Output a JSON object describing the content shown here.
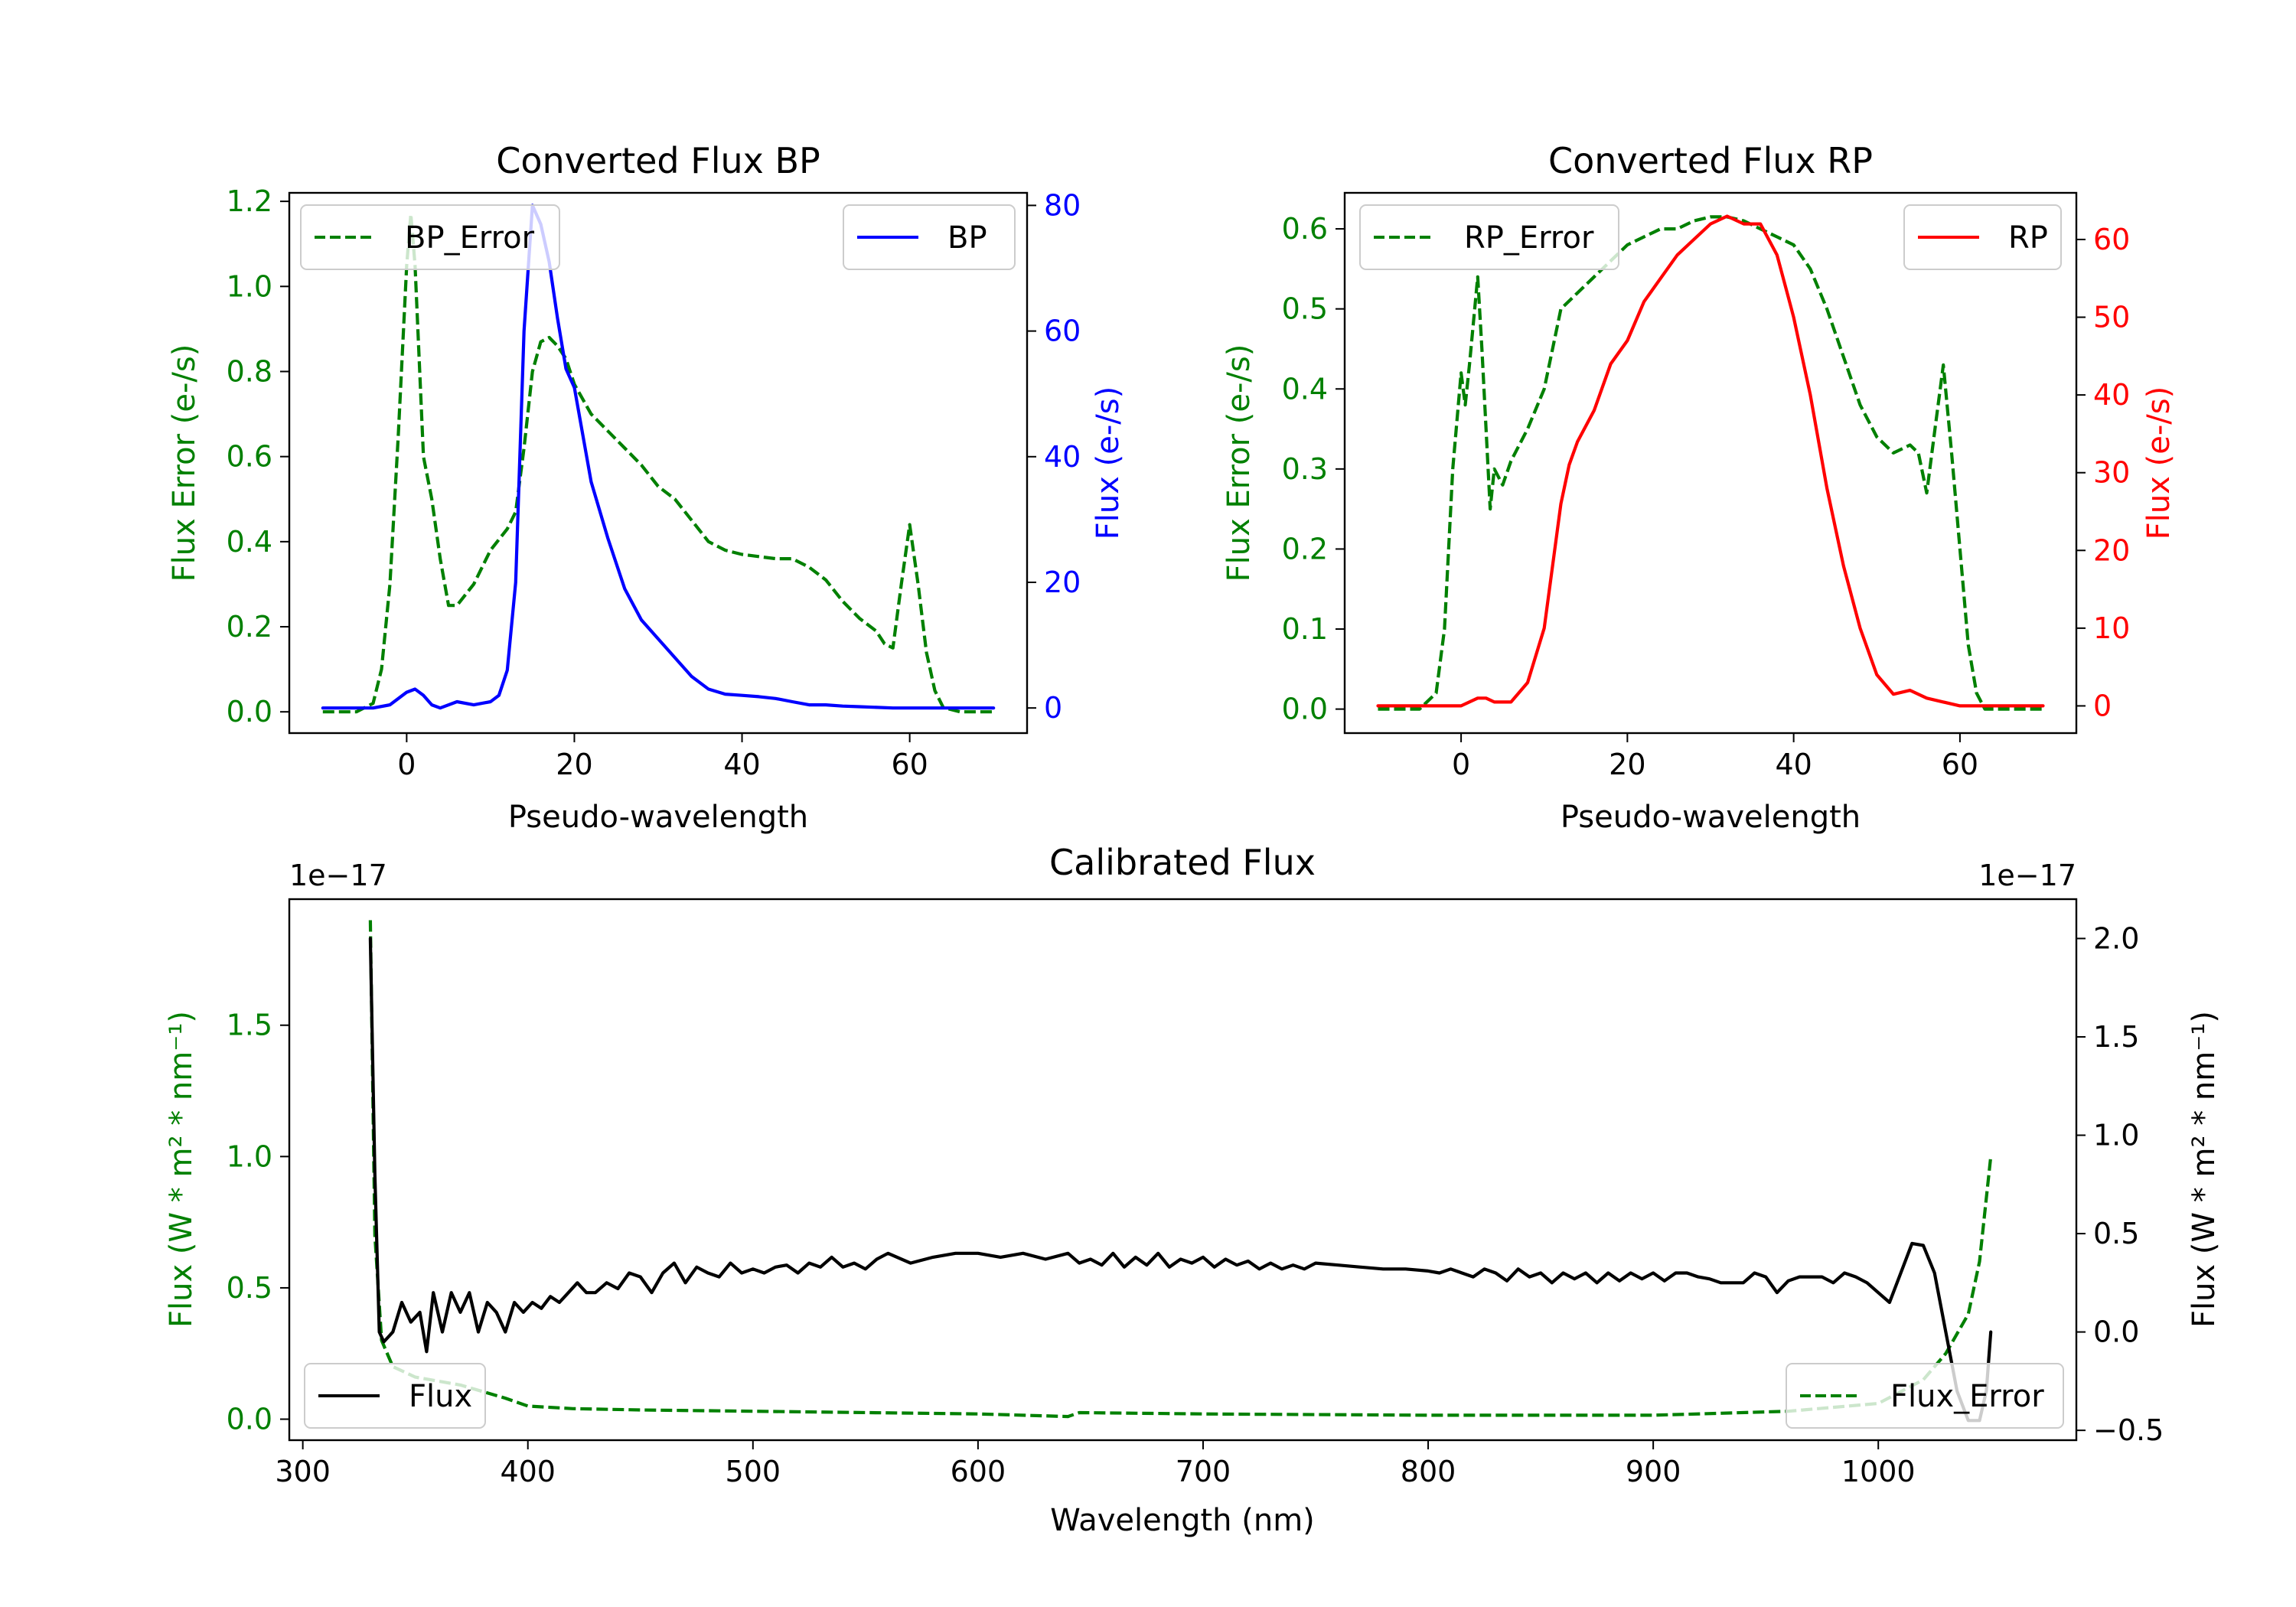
{
  "chart_data": [
    {
      "id": "bp",
      "type": "line",
      "title": "Converted Flux BP",
      "xlabel": "Pseudo-wavelength",
      "xlim": [
        -14,
        74
      ],
      "xticks": [
        0,
        20,
        40,
        60
      ],
      "left_axis": {
        "label": "Flux Error (e-/s)",
        "color": "#008000",
        "lim": [
          -0.05,
          1.22
        ],
        "ticks": [
          0.0,
          0.2,
          0.4,
          0.6,
          0.8,
          1.0,
          1.2
        ],
        "tick_labels": [
          "0.0",
          "0.2",
          "0.4",
          "0.6",
          "0.8",
          "1.0",
          "1.2"
        ]
      },
      "right_axis": {
        "label": "Flux (e-/s)",
        "color": "#0000ff",
        "lim": [
          -4,
          82
        ],
        "ticks": [
          0,
          20,
          40,
          60,
          80
        ],
        "tick_labels": [
          "0",
          "20",
          "40",
          "60",
          "80"
        ]
      },
      "series": [
        {
          "name": "BP_Error",
          "axis": "left",
          "color": "#008000",
          "dash": true,
          "x": [
            -10,
            -6,
            -4,
            -3,
            -2,
            -1,
            0,
            0.5,
            1,
            2,
            3,
            4,
            5,
            6,
            8,
            10,
            12,
            13,
            14,
            15,
            16,
            17,
            18,
            19,
            20,
            22,
            24,
            26,
            28,
            30,
            32,
            34,
            36,
            38,
            40,
            42,
            44,
            46,
            48,
            50,
            52,
            54,
            56,
            57,
            58,
            59,
            60,
            61,
            62,
            63,
            64,
            66,
            70
          ],
          "y": [
            0.0,
            0.0,
            0.02,
            0.1,
            0.3,
            0.65,
            1.05,
            1.17,
            1.05,
            0.6,
            0.5,
            0.36,
            0.25,
            0.25,
            0.3,
            0.38,
            0.43,
            0.47,
            0.62,
            0.8,
            0.87,
            0.88,
            0.86,
            0.83,
            0.77,
            0.7,
            0.66,
            0.62,
            0.58,
            0.53,
            0.5,
            0.45,
            0.4,
            0.38,
            0.37,
            0.365,
            0.36,
            0.36,
            0.34,
            0.31,
            0.26,
            0.22,
            0.19,
            0.16,
            0.15,
            0.3,
            0.44,
            0.3,
            0.14,
            0.05,
            0.01,
            0.0,
            0.0
          ]
        },
        {
          "name": "BP",
          "axis": "right",
          "color": "#0000ff",
          "dash": false,
          "x": [
            -10,
            -4,
            -2,
            0,
            1,
            2,
            3,
            4,
            6,
            8,
            10,
            11,
            12,
            13,
            14,
            15,
            16,
            17,
            18,
            19,
            20,
            22,
            24,
            26,
            28,
            30,
            32,
            34,
            36,
            38,
            40,
            42,
            44,
            46,
            48,
            50,
            52,
            54,
            58,
            62,
            66,
            70
          ],
          "y": [
            0,
            0,
            0.5,
            2.5,
            3,
            2,
            0.5,
            0,
            1,
            0.5,
            1,
            2,
            6,
            20,
            60,
            80,
            77,
            71,
            62,
            54,
            51,
            36,
            27,
            19,
            14,
            11,
            8,
            5,
            3,
            2.2,
            2,
            1.8,
            1.5,
            1,
            0.5,
            0.5,
            0.3,
            0.2,
            0,
            0,
            0,
            0
          ]
        }
      ],
      "legends": [
        {
          "text": "BP_Error",
          "position": "upper left"
        },
        {
          "text": "BP",
          "position": "upper right"
        }
      ]
    },
    {
      "id": "rp",
      "type": "line",
      "title": "Converted Flux RP",
      "xlabel": "Pseudo-wavelength",
      "xlim": [
        -14,
        74
      ],
      "xticks": [
        0,
        20,
        40,
        60
      ],
      "left_axis": {
        "label": "Flux Error (e-/s)",
        "color": "#008000",
        "lim": [
          -0.03,
          0.645
        ],
        "ticks": [
          0.0,
          0.1,
          0.2,
          0.3,
          0.4,
          0.5,
          0.6
        ],
        "tick_labels": [
          "0.0",
          "0.1",
          "0.2",
          "0.3",
          "0.4",
          "0.5",
          "0.6"
        ]
      },
      "right_axis": {
        "label": "Flux (e-/s)",
        "color": "#ff0000",
        "lim": [
          -3.5,
          66
        ],
        "ticks": [
          0,
          10,
          20,
          30,
          40,
          50,
          60
        ],
        "tick_labels": [
          "0",
          "10",
          "20",
          "30",
          "40",
          "50",
          "60"
        ]
      },
      "series": [
        {
          "name": "RP_Error",
          "axis": "left",
          "color": "#008000",
          "dash": true,
          "x": [
            -10,
            -5,
            -3,
            -2,
            -1,
            0,
            0.5,
            1,
            2,
            2.5,
            3,
            3.5,
            4,
            5,
            6,
            8,
            10,
            12,
            14,
            16,
            18,
            20,
            22,
            24,
            26,
            28,
            30,
            32,
            34,
            36,
            38,
            40,
            42,
            44,
            46,
            48,
            50,
            52,
            54,
            55,
            56,
            57,
            58,
            59,
            60,
            61,
            62,
            63,
            65,
            70
          ],
          "y": [
            0.0,
            0.0,
            0.02,
            0.1,
            0.3,
            0.42,
            0.38,
            0.43,
            0.54,
            0.45,
            0.35,
            0.25,
            0.3,
            0.28,
            0.31,
            0.35,
            0.4,
            0.5,
            0.52,
            0.54,
            0.56,
            0.58,
            0.59,
            0.6,
            0.6,
            0.61,
            0.615,
            0.615,
            0.61,
            0.6,
            0.59,
            0.58,
            0.55,
            0.5,
            0.44,
            0.38,
            0.34,
            0.32,
            0.33,
            0.32,
            0.27,
            0.35,
            0.43,
            0.32,
            0.2,
            0.08,
            0.02,
            0.0,
            0.0,
            0.0
          ]
        },
        {
          "name": "RP",
          "axis": "right",
          "color": "#ff0000",
          "dash": false,
          "x": [
            -10,
            -2,
            0,
            2,
            3,
            4,
            6,
            8,
            10,
            11,
            12,
            13,
            14,
            16,
            18,
            20,
            22,
            24,
            26,
            28,
            30,
            32,
            34,
            36,
            38,
            39,
            40,
            42,
            44,
            46,
            48,
            50,
            52,
            54,
            56,
            58,
            60,
            62,
            66,
            70
          ],
          "y": [
            0,
            0,
            0,
            1,
            1,
            0.5,
            0.5,
            3,
            10,
            18,
            26,
            31,
            34,
            38,
            44,
            47,
            52,
            55,
            58,
            60,
            62,
            63,
            62,
            62,
            58,
            54,
            50,
            40,
            28,
            18,
            10,
            4,
            1.5,
            2,
            1,
            0.5,
            0,
            0,
            0,
            0
          ]
        }
      ],
      "legends": [
        {
          "text": "RP_Error",
          "position": "upper left"
        },
        {
          "text": "RP",
          "position": "upper right"
        }
      ]
    },
    {
      "id": "cal",
      "type": "line",
      "title": "Calibrated Flux",
      "xlabel": "Wavelength (nm)",
      "xlim": [
        294,
        1088
      ],
      "xticks": [
        300,
        400,
        500,
        600,
        700,
        800,
        900,
        1000
      ],
      "left_axis": {
        "label": "Flux (W * m² * nm⁻¹)",
        "color": "#008000",
        "offset_text": "1e−17",
        "lim": [
          -0.08,
          1.98
        ],
        "ticks": [
          0.0,
          0.5,
          1.0,
          1.5
        ],
        "tick_labels": [
          "0.0",
          "0.5",
          "1.0",
          "1.5"
        ]
      },
      "right_axis": {
        "label": "Flux (W * m² * nm⁻¹)",
        "color": "#000000",
        "offset_text": "1e−17",
        "lim": [
          -0.55,
          2.2
        ],
        "ticks": [
          -0.5,
          0.0,
          0.5,
          1.0,
          1.5,
          2.0
        ],
        "tick_labels": [
          "−0.5",
          "0.0",
          "0.5",
          "1.0",
          "1.5",
          "2.0"
        ]
      },
      "series": [
        {
          "name": "Flux_Error",
          "axis": "left",
          "color": "#008000",
          "dash": true,
          "x": [
            330,
            332,
            335,
            340,
            350,
            370,
            390,
            400,
            420,
            450,
            500,
            600,
            640,
            645,
            700,
            800,
            900,
            960,
            1000,
            1020,
            1030,
            1040,
            1045,
            1050
          ],
          "y": [
            1.9,
            0.7,
            0.3,
            0.2,
            0.16,
            0.13,
            0.08,
            0.05,
            0.04,
            0.035,
            0.03,
            0.02,
            0.01,
            0.025,
            0.02,
            0.015,
            0.015,
            0.03,
            0.06,
            0.15,
            0.25,
            0.4,
            0.6,
            1.0
          ]
        },
        {
          "name": "Flux",
          "axis": "right",
          "color": "#000000",
          "dash": false,
          "x": [
            330,
            332,
            334,
            336,
            340,
            344,
            348,
            352,
            355,
            358,
            362,
            366,
            370,
            374,
            378,
            382,
            386,
            390,
            394,
            398,
            402,
            406,
            410,
            414,
            418,
            422,
            426,
            430,
            435,
            440,
            445,
            450,
            455,
            460,
            465,
            470,
            475,
            480,
            485,
            490,
            495,
            500,
            505,
            510,
            515,
            520,
            525,
            530,
            535,
            540,
            545,
            550,
            555,
            560,
            570,
            580,
            590,
            600,
            610,
            620,
            630,
            640,
            645,
            650,
            655,
            660,
            665,
            670,
            675,
            680,
            685,
            690,
            695,
            700,
            705,
            710,
            715,
            720,
            725,
            730,
            735,
            740,
            745,
            750,
            760,
            770,
            780,
            790,
            800,
            805,
            810,
            815,
            820,
            825,
            830,
            835,
            840,
            845,
            850,
            855,
            860,
            865,
            870,
            875,
            880,
            885,
            890,
            895,
            900,
            905,
            910,
            915,
            920,
            925,
            930,
            935,
            940,
            945,
            950,
            955,
            960,
            965,
            970,
            975,
            980,
            985,
            990,
            995,
            1000,
            1005,
            1010,
            1015,
            1020,
            1025,
            1030,
            1035,
            1040,
            1045,
            1048,
            1050
          ],
          "y": [
            2.0,
            0.8,
            0.0,
            -0.05,
            0.0,
            0.15,
            0.05,
            0.1,
            -0.1,
            0.2,
            0.0,
            0.2,
            0.1,
            0.2,
            0.0,
            0.15,
            0.1,
            0.0,
            0.15,
            0.1,
            0.15,
            0.12,
            0.18,
            0.15,
            0.2,
            0.25,
            0.2,
            0.2,
            0.25,
            0.22,
            0.3,
            0.28,
            0.2,
            0.3,
            0.35,
            0.25,
            0.33,
            0.3,
            0.28,
            0.35,
            0.3,
            0.32,
            0.3,
            0.33,
            0.34,
            0.3,
            0.35,
            0.33,
            0.38,
            0.33,
            0.35,
            0.32,
            0.37,
            0.4,
            0.35,
            0.38,
            0.4,
            0.4,
            0.38,
            0.4,
            0.37,
            0.4,
            0.35,
            0.37,
            0.34,
            0.4,
            0.33,
            0.38,
            0.34,
            0.4,
            0.33,
            0.37,
            0.35,
            0.38,
            0.33,
            0.37,
            0.34,
            0.36,
            0.32,
            0.35,
            0.32,
            0.34,
            0.32,
            0.35,
            0.34,
            0.33,
            0.32,
            0.32,
            0.31,
            0.3,
            0.32,
            0.3,
            0.28,
            0.32,
            0.3,
            0.26,
            0.32,
            0.28,
            0.3,
            0.25,
            0.3,
            0.27,
            0.3,
            0.25,
            0.3,
            0.26,
            0.3,
            0.27,
            0.3,
            0.26,
            0.3,
            0.3,
            0.28,
            0.27,
            0.25,
            0.25,
            0.25,
            0.3,
            0.28,
            0.2,
            0.26,
            0.28,
            0.28,
            0.28,
            0.25,
            0.3,
            0.28,
            0.25,
            0.2,
            0.15,
            0.3,
            0.45,
            0.44,
            0.3,
            0.0,
            -0.3,
            -0.45,
            -0.45,
            -0.3,
            0.0
          ],
          "clip_top": true
        }
      ],
      "legends": [
        {
          "text": "Flux",
          "position": "lower left"
        },
        {
          "text": "Flux_Error",
          "position": "lower right"
        }
      ]
    }
  ]
}
